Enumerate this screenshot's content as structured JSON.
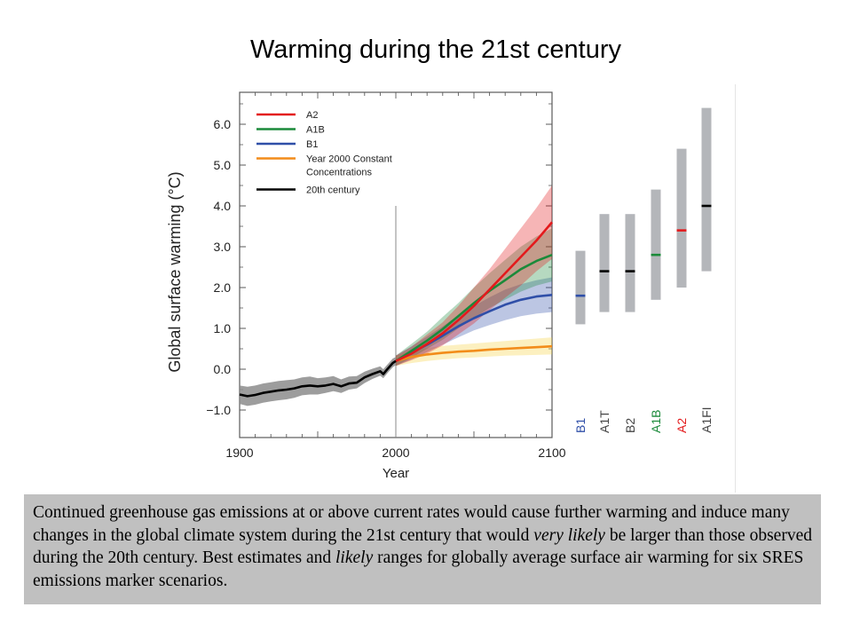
{
  "slide": {
    "title": "Warming during the 21st century",
    "caption": {
      "p1": "Continued greenhouse gas emissions at or above current rates would cause further warming and induce many changes in the global climate system during the 21st century that would ",
      "em1": "very likely",
      "p2": " be larger than those observed during the 20th century. Best estimates and ",
      "em2": "likely",
      "p3": " ranges for globally average surface air warming for six SRES emissions marker scenarios."
    }
  },
  "colors": {
    "A2": "#e31a1c",
    "A1B": "#1b8a3a",
    "B1": "#2f4fa8",
    "const": "#f28c1a",
    "c20": "#000000",
    "range_bar": "#b4b6ba",
    "frame": "#5a5a5a"
  },
  "chart_data": [
    {
      "type": "line",
      "title": "",
      "xlabel": "Year",
      "ylabel": "Global surface warming (°C)",
      "xlim": [
        1900,
        2100
      ],
      "ylim": [
        -1.5,
        6.8
      ],
      "xticks": [
        "1900",
        "2000",
        "2100"
      ],
      "yticks": [
        "6.0",
        "5.0",
        "4.0",
        "3.0",
        "2.0",
        "1.0",
        "0.0",
        "−1.0"
      ],
      "legend_position": "top-left",
      "vline_x": 2000,
      "series": [
        {
          "name": "A2",
          "key": "A2",
          "x": [
            2000,
            2010,
            2020,
            2030,
            2040,
            2050,
            2060,
            2070,
            2080,
            2090,
            2100
          ],
          "y": [
            0.2,
            0.38,
            0.62,
            0.88,
            1.2,
            1.55,
            1.95,
            2.35,
            2.75,
            3.15,
            3.6
          ],
          "lo": [
            0.08,
            0.22,
            0.38,
            0.58,
            0.85,
            1.12,
            1.45,
            1.75,
            2.05,
            2.4,
            2.7
          ],
          "hi": [
            0.33,
            0.55,
            0.85,
            1.15,
            1.55,
            2.0,
            2.45,
            2.95,
            3.45,
            3.95,
            4.5
          ]
        },
        {
          "name": "A1B",
          "key": "A1B",
          "x": [
            2000,
            2010,
            2020,
            2030,
            2040,
            2050,
            2060,
            2070,
            2080,
            2090,
            2100
          ],
          "y": [
            0.2,
            0.45,
            0.7,
            0.98,
            1.3,
            1.62,
            1.92,
            2.18,
            2.45,
            2.65,
            2.8
          ],
          "lo": [
            0.08,
            0.28,
            0.5,
            0.72,
            1.0,
            1.25,
            1.5,
            1.7,
            1.9,
            2.05,
            2.15
          ],
          "hi": [
            0.33,
            0.62,
            0.92,
            1.28,
            1.62,
            2.0,
            2.35,
            2.68,
            3.0,
            3.25,
            3.45
          ]
        },
        {
          "name": "B1",
          "key": "B1",
          "x": [
            2000,
            2010,
            2020,
            2030,
            2040,
            2050,
            2060,
            2070,
            2080,
            2090,
            2100
          ],
          "y": [
            0.2,
            0.4,
            0.6,
            0.82,
            1.05,
            1.25,
            1.42,
            1.58,
            1.7,
            1.78,
            1.82
          ],
          "lo": [
            0.08,
            0.24,
            0.42,
            0.6,
            0.78,
            0.95,
            1.08,
            1.2,
            1.3,
            1.36,
            1.4
          ],
          "hi": [
            0.33,
            0.56,
            0.8,
            1.05,
            1.32,
            1.55,
            1.76,
            1.95,
            2.08,
            2.18,
            2.25
          ]
        },
        {
          "name": "Year 2000 Constant Concentrations",
          "key": "const",
          "x": [
            2000,
            2010,
            2020,
            2030,
            2040,
            2050,
            2060,
            2070,
            2080,
            2090,
            2100
          ],
          "y": [
            0.2,
            0.3,
            0.36,
            0.4,
            0.43,
            0.45,
            0.48,
            0.5,
            0.52,
            0.54,
            0.56
          ],
          "lo": [
            0.08,
            0.15,
            0.2,
            0.24,
            0.27,
            0.29,
            0.31,
            0.33,
            0.34,
            0.35,
            0.36
          ],
          "hi": [
            0.33,
            0.45,
            0.52,
            0.57,
            0.6,
            0.63,
            0.66,
            0.69,
            0.72,
            0.75,
            0.78
          ]
        },
        {
          "name": "20th century",
          "key": "c20",
          "x": [
            1900,
            1905,
            1910,
            1915,
            1920,
            1925,
            1930,
            1935,
            1940,
            1945,
            1950,
            1955,
            1960,
            1965,
            1970,
            1975,
            1980,
            1985,
            1990,
            1992,
            1995,
            1998,
            2000
          ],
          "y": [
            -0.62,
            -0.66,
            -0.63,
            -0.58,
            -0.55,
            -0.52,
            -0.5,
            -0.47,
            -0.42,
            -0.4,
            -0.42,
            -0.4,
            -0.36,
            -0.42,
            -0.35,
            -0.33,
            -0.2,
            -0.12,
            -0.05,
            -0.12,
            0.02,
            0.15,
            0.2
          ],
          "lo": [
            -0.85,
            -0.9,
            -0.87,
            -0.82,
            -0.79,
            -0.76,
            -0.74,
            -0.7,
            -0.64,
            -0.62,
            -0.62,
            -0.58,
            -0.54,
            -0.58,
            -0.5,
            -0.47,
            -0.34,
            -0.24,
            -0.16,
            -0.22,
            -0.08,
            0.05,
            0.1
          ],
          "hi": [
            -0.4,
            -0.43,
            -0.4,
            -0.35,
            -0.32,
            -0.29,
            -0.27,
            -0.25,
            -0.2,
            -0.18,
            -0.22,
            -0.2,
            -0.17,
            -0.25,
            -0.18,
            -0.17,
            -0.06,
            0.01,
            0.07,
            0.0,
            0.13,
            0.26,
            0.3
          ]
        }
      ]
    },
    {
      "type": "bar",
      "subtype": "range",
      "categories": [
        "B1",
        "A1T",
        "B2",
        "A1B",
        "A2",
        "A1FI"
      ],
      "category_colors": [
        "B1",
        "c20",
        "c20",
        "A1B",
        "A2",
        "c20"
      ],
      "low": [
        1.1,
        1.4,
        1.4,
        1.7,
        2.0,
        2.4
      ],
      "high": [
        2.9,
        3.8,
        3.8,
        4.4,
        5.4,
        6.4
      ],
      "best": [
        1.8,
        2.4,
        2.4,
        2.8,
        3.4,
        4.0
      ]
    }
  ]
}
